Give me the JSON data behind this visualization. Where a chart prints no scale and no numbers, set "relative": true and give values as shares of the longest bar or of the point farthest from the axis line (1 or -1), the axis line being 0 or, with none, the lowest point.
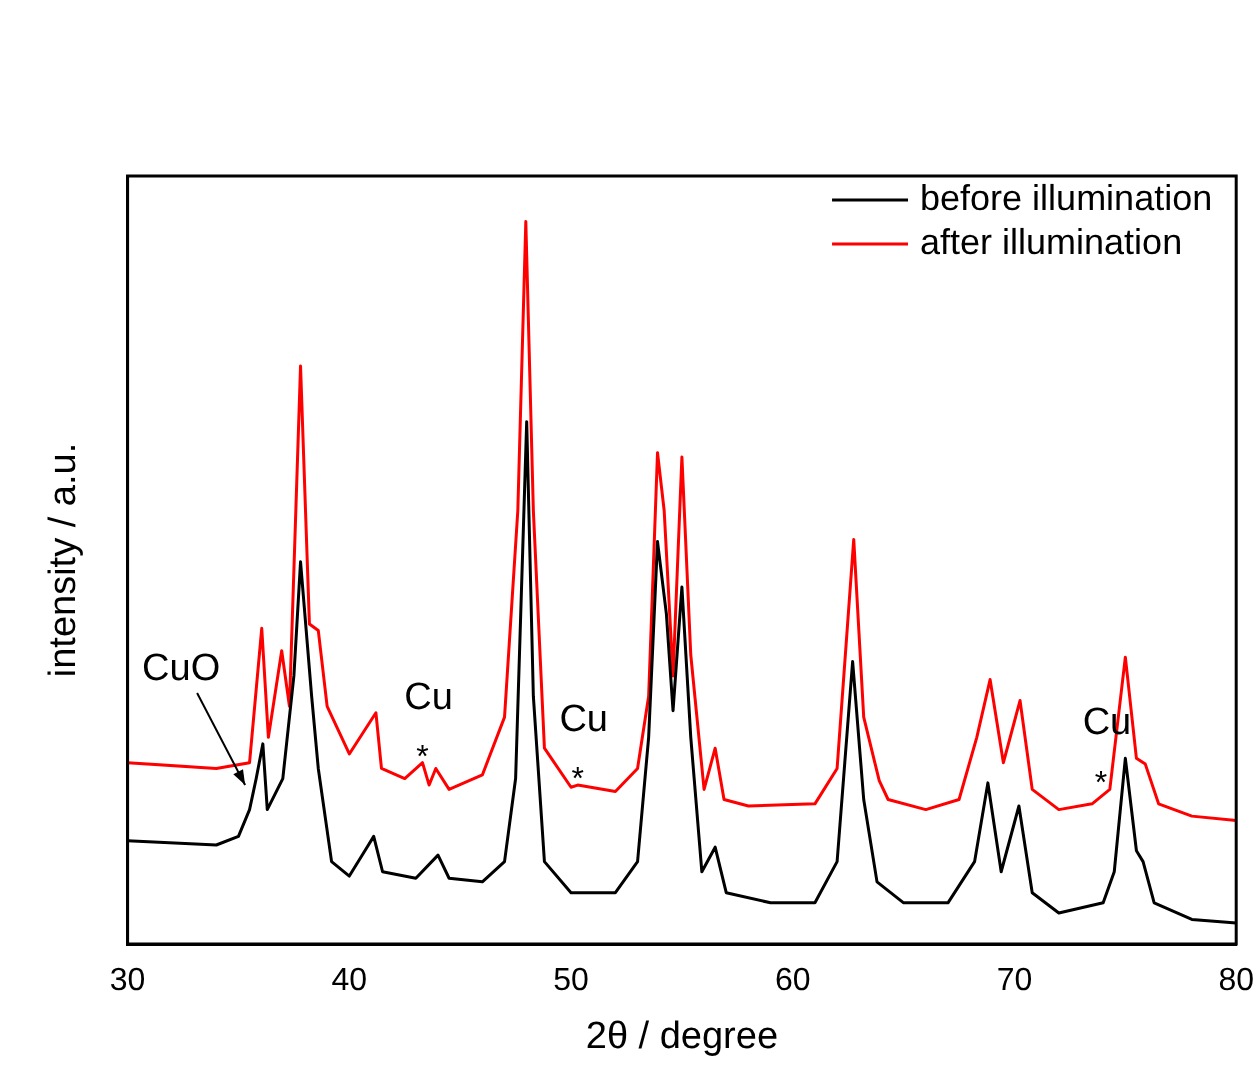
{
  "chart_data": {
    "type": "line",
    "relative": true,
    "xlabel": "2θ / degree",
    "ylabel": "intensity / a.u.",
    "xlim": [
      30,
      80
    ],
    "xticks": [
      30,
      40,
      50,
      60,
      70,
      80
    ],
    "grid": false,
    "legend": "top right",
    "marker": "none",
    "line_style": "solid",
    "series": [
      {
        "name": "before illumination",
        "color": "#000000",
        "x": [
          30,
          34,
          35,
          35.5,
          35.8,
          36.1,
          36.3,
          37,
          37.5,
          37.8,
          38.3,
          38.6,
          39.2,
          40,
          40.8,
          41.1,
          41.5,
          43,
          44,
          44.5,
          46,
          47,
          47.5,
          48,
          48.3,
          48.8,
          50,
          52,
          53,
          53.5,
          53.9,
          54.3,
          54.6,
          55,
          55.4,
          55.9,
          56.5,
          57,
          59,
          61,
          62,
          62.7,
          63.2,
          63.8,
          65,
          67,
          68.2,
          68.8,
          69.4,
          70.2,
          70.8,
          72,
          74,
          74.5,
          75,
          75.5,
          75.8,
          76.3,
          78,
          80
        ],
        "values": [
          0.143,
          0.137,
          0.149,
          0.186,
          0.229,
          0.277,
          0.186,
          0.229,
          0.371,
          0.529,
          0.343,
          0.243,
          0.114,
          0.094,
          0.134,
          0.149,
          0.1,
          0.091,
          0.123,
          0.091,
          0.086,
          0.114,
          0.229,
          0.723,
          0.343,
          0.114,
          0.071,
          0.071,
          0.114,
          0.286,
          0.557,
          0.457,
          0.323,
          0.494,
          0.286,
          0.1,
          0.134,
          0.071,
          0.057,
          0.057,
          0.114,
          0.391,
          0.2,
          0.086,
          0.057,
          0.057,
          0.114,
          0.223,
          0.1,
          0.191,
          0.071,
          0.043,
          0.057,
          0.1,
          0.257,
          0.129,
          0.114,
          0.057,
          0.034,
          0.029
        ]
      },
      {
        "name": "after illumination",
        "color": "#ff0000",
        "x": [
          30,
          34,
          35.5,
          36.05,
          36.35,
          36.95,
          37.3,
          37.8,
          38.2,
          38.6,
          39,
          40,
          41.2,
          41.45,
          42.5,
          43.3,
          43.6,
          43.9,
          44.5,
          46,
          47,
          47.6,
          47.96,
          48.3,
          48.8,
          50,
          50.3,
          52,
          53,
          53.5,
          53.9,
          54.2,
          54.6,
          55,
          55.4,
          56,
          56.5,
          56.9,
          58,
          61,
          62,
          62.75,
          63.2,
          63.9,
          64.3,
          66,
          67.5,
          68.3,
          68.9,
          69.5,
          70.25,
          70.8,
          72,
          73.5,
          74.3,
          75,
          75.5,
          75.9,
          76.5,
          78,
          80
        ],
        "values": [
          0.251,
          0.243,
          0.251,
          0.437,
          0.286,
          0.406,
          0.329,
          0.8,
          0.443,
          0.434,
          0.329,
          0.263,
          0.32,
          0.243,
          0.229,
          0.251,
          0.22,
          0.243,
          0.214,
          0.234,
          0.314,
          0.6,
          1,
          0.6,
          0.271,
          0.217,
          0.22,
          0.211,
          0.243,
          0.343,
          0.68,
          0.6,
          0.371,
          0.674,
          0.4,
          0.214,
          0.271,
          0.2,
          0.191,
          0.194,
          0.243,
          0.56,
          0.314,
          0.226,
          0.2,
          0.186,
          0.2,
          0.286,
          0.366,
          0.251,
          0.337,
          0.214,
          0.186,
          0.194,
          0.214,
          0.397,
          0.257,
          0.249,
          0.194,
          0.177,
          0.171
        ]
      }
    ],
    "annotations": [
      {
        "text": "CuO",
        "x": 35.3,
        "y": 0.22
      },
      {
        "text": "Cu",
        "x": 43.3,
        "y": 0.265
      },
      {
        "text": "*",
        "x": 43.3,
        "y": 0.265
      },
      {
        "text": "Cu",
        "x": 50.3,
        "y": 0.235
      },
      {
        "text": "*",
        "x": 50.3,
        "y": 0.235
      },
      {
        "text": "Cu",
        "x": 73.9,
        "y": 0.23
      },
      {
        "text": "*",
        "x": 73.9,
        "y": 0.23
      }
    ]
  }
}
